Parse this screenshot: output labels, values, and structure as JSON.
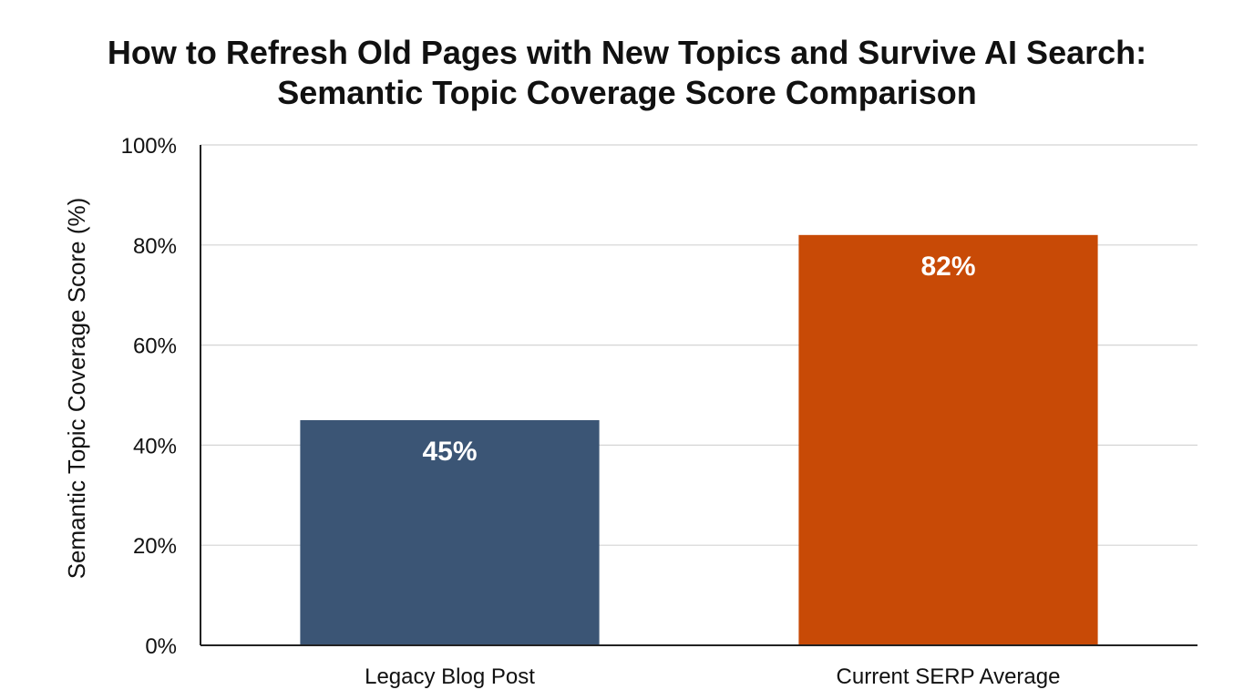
{
  "chart_data": {
    "type": "bar",
    "title": "How to Refresh Old Pages with New Topics and Survive AI Search:",
    "subtitle": "Semantic Topic Coverage Score Comparison",
    "xlabel": "",
    "ylabel": "Semantic Topic Coverage Score (%)",
    "categories": [
      "Legacy Blog Post",
      "Current SERP Average"
    ],
    "values": [
      45,
      82
    ],
    "data_labels": [
      "45%",
      "82%"
    ],
    "colors": [
      "#3b5575",
      "#c84a06"
    ],
    "ylim": [
      0,
      100
    ],
    "yticks": [
      0,
      20,
      40,
      60,
      80,
      100
    ],
    "ytick_labels": [
      "0%",
      "20%",
      "40%",
      "60%",
      "80%",
      "100%"
    ],
    "grid": true,
    "legend": "none"
  }
}
